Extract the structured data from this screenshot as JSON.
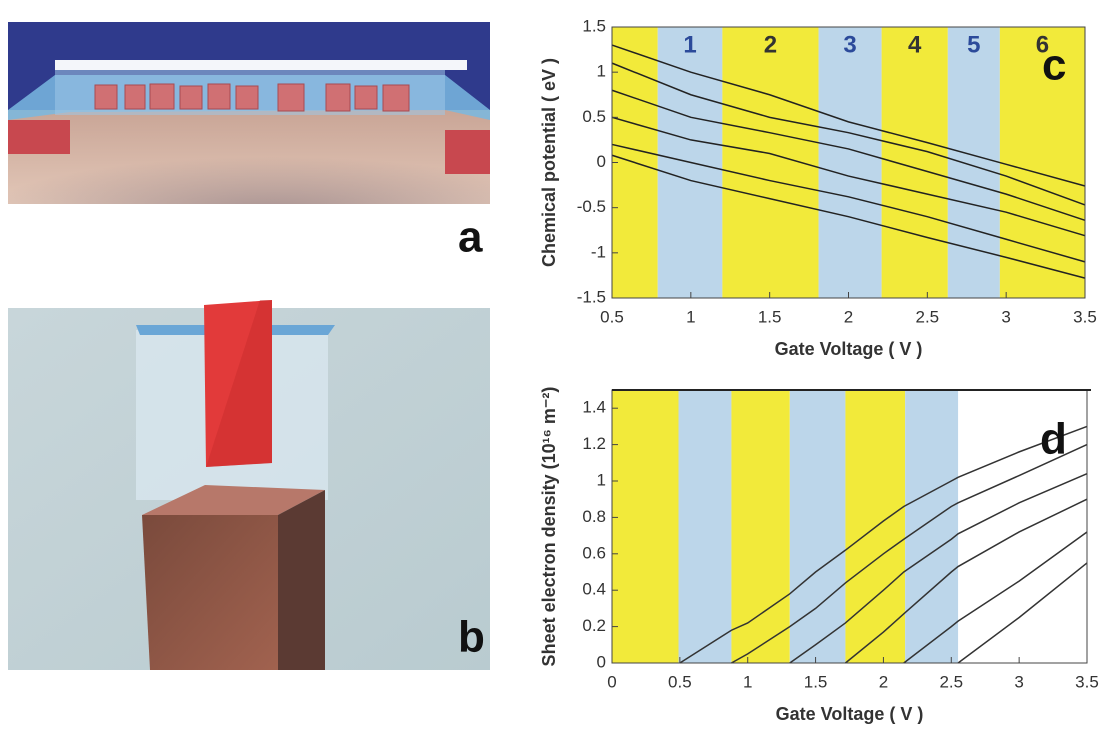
{
  "panels": [
    {
      "label": "a"
    },
    {
      "label": "b"
    }
  ],
  "chart_data": [
    {
      "type": "line",
      "panel_label": "c",
      "x_label": "Gate Voltage ( V )",
      "y_label": "Chemical potential ( eV )",
      "xlim": [
        0.5,
        3.5
      ],
      "xticks": [
        0.5,
        1,
        1.5,
        2,
        2.5,
        3,
        3.5
      ],
      "ylim": [
        -1.5,
        1.5
      ],
      "yticks": [
        -1.5,
        -1,
        -0.5,
        0,
        0.5,
        1,
        1.5
      ],
      "regions": [
        {
          "start": 0.5,
          "end": 0.79,
          "color": "#f2ea3a"
        },
        {
          "start": 0.79,
          "end": 1.2,
          "color": "#bcd6ea",
          "label": "1"
        },
        {
          "start": 1.2,
          "end": 1.81,
          "color": "#f2ea3a",
          "label": "2"
        },
        {
          "start": 1.81,
          "end": 2.21,
          "color": "#bcd6ea",
          "label": "3"
        },
        {
          "start": 2.21,
          "end": 2.63,
          "color": "#f2ea3a",
          "label": "4"
        },
        {
          "start": 2.63,
          "end": 2.96,
          "color": "#bcd6ea",
          "label": "5"
        },
        {
          "start": 2.96,
          "end": 3.5,
          "color": "#f2ea3a",
          "label": "6"
        }
      ],
      "x": [
        0.5,
        1,
        1.5,
        2,
        2.5,
        3,
        3.5
      ],
      "series": [
        {
          "color": "#222222",
          "values": [
            1.3,
            1.0,
            0.75,
            0.45,
            0.22,
            -0.02,
            -0.26
          ]
        },
        {
          "color": "#222222",
          "values": [
            1.1,
            0.75,
            0.5,
            0.33,
            0.12,
            -0.15,
            -0.47
          ]
        },
        {
          "color": "#222222",
          "values": [
            0.8,
            0.5,
            0.33,
            0.15,
            -0.1,
            -0.35,
            -0.64
          ]
        },
        {
          "color": "#222222",
          "values": [
            0.5,
            0.25,
            0.1,
            -0.15,
            -0.35,
            -0.55,
            -0.81
          ]
        },
        {
          "color": "#222222",
          "values": [
            0.2,
            0.0,
            -0.2,
            -0.38,
            -0.6,
            -0.85,
            -1.1
          ]
        },
        {
          "color": "#222222",
          "values": [
            0.08,
            -0.2,
            -0.4,
            -0.6,
            -0.83,
            -1.05,
            -1.28
          ]
        }
      ]
    },
    {
      "type": "line",
      "panel_label": "d",
      "x_label": "Gate Voltage ( V )",
      "y_label": "Sheet electron density (10¹⁶ m⁻²)",
      "xlim": [
        0,
        3.5
      ],
      "xticks": [
        0,
        0.5,
        1,
        1.5,
        2,
        2.5,
        3,
        3.5
      ],
      "ylim": [
        0,
        1.5
      ],
      "yticks": [
        0,
        0.2,
        0.4,
        0.6,
        0.8,
        1,
        1.2,
        1.4
      ],
      "regions": [
        {
          "start": 0,
          "end": 0.49,
          "color": "#f2ea3a"
        },
        {
          "start": 0.49,
          "end": 0.88,
          "color": "#bcd6ea"
        },
        {
          "start": 0.88,
          "end": 1.31,
          "color": "#f2ea3a"
        },
        {
          "start": 1.31,
          "end": 1.72,
          "color": "#bcd6ea"
        },
        {
          "start": 1.72,
          "end": 2.16,
          "color": "#f2ea3a"
        },
        {
          "start": 2.16,
          "end": 2.55,
          "color": "#bcd6ea"
        }
      ],
      "x": [
        0.5,
        0.88,
        1,
        1.31,
        1.5,
        1.72,
        2,
        2.15,
        2.5,
        2.55,
        3,
        3.5
      ],
      "series": [
        {
          "color": "#333333",
          "values": [
            0,
            0.18,
            0.22,
            0.38,
            0.5,
            0.62,
            0.78,
            0.86,
            1.0,
            1.02,
            1.16,
            1.3
          ]
        },
        {
          "color": "#333333",
          "values": [
            null,
            0,
            0.05,
            0.2,
            0.3,
            0.44,
            0.6,
            0.68,
            0.86,
            0.88,
            1.03,
            1.2
          ]
        },
        {
          "color": "#333333",
          "values": [
            null,
            null,
            null,
            0,
            0.1,
            0.22,
            0.4,
            0.5,
            0.68,
            0.71,
            0.88,
            1.04
          ]
        },
        {
          "color": "#333333",
          "values": [
            null,
            null,
            null,
            null,
            null,
            0,
            0.17,
            0.27,
            0.5,
            0.53,
            0.72,
            0.9
          ]
        },
        {
          "color": "#333333",
          "values": [
            null,
            null,
            null,
            null,
            null,
            null,
            null,
            0,
            0.2,
            0.23,
            0.45,
            0.72
          ]
        },
        {
          "color": "#333333",
          "values": [
            null,
            null,
            null,
            null,
            null,
            null,
            null,
            null,
            null,
            0,
            0.25,
            0.55
          ]
        }
      ]
    }
  ]
}
